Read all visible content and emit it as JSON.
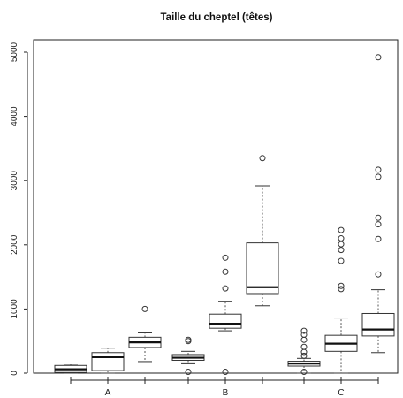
{
  "chart_data": {
    "type": "boxplot",
    "title": "Taille du cheptel (têtes)",
    "xlabel": "",
    "ylabel": "",
    "ylim": [
      0,
      5000
    ],
    "yticks": [
      0,
      1000,
      2000,
      3000,
      4000,
      5000
    ],
    "categories": [
      "A",
      "B",
      "C"
    ],
    "groups_per_category": 3,
    "grid": false,
    "boxes": [
      {
        "category": "A",
        "index": 0,
        "whislo": 0,
        "q1": 10,
        "median": 60,
        "q3": 120,
        "whishi": 140,
        "outliers": []
      },
      {
        "category": "A",
        "index": 1,
        "whislo": 0,
        "q1": 40,
        "median": 250,
        "q3": 320,
        "whishi": 390,
        "outliers": []
      },
      {
        "category": "A",
        "index": 2,
        "whislo": 180,
        "q1": 400,
        "median": 480,
        "q3": 560,
        "whishi": 640,
        "outliers": [
          1000
        ]
      },
      {
        "category": "B",
        "index": 0,
        "whislo": 160,
        "q1": 200,
        "median": 240,
        "q3": 290,
        "whishi": 340,
        "outliers": [
          20,
          500,
          520
        ]
      },
      {
        "category": "B",
        "index": 1,
        "whislo": 660,
        "q1": 700,
        "median": 770,
        "q3": 920,
        "whishi": 1120,
        "outliers": [
          20,
          1320,
          1580,
          1800
        ]
      },
      {
        "category": "B",
        "index": 2,
        "whislo": 1050,
        "q1": 1240,
        "median": 1340,
        "q3": 2030,
        "whishi": 2920,
        "outliers": [
          3350
        ]
      },
      {
        "category": "C",
        "index": 0,
        "whislo": 0,
        "q1": 110,
        "median": 150,
        "q3": 185,
        "whishi": 230,
        "outliers": [
          20,
          270,
          330,
          410,
          520,
          600,
          660
        ]
      },
      {
        "category": "C",
        "index": 1,
        "whislo": 0,
        "q1": 340,
        "median": 460,
        "q3": 590,
        "whishi": 860,
        "outliers": [
          1310,
          1360,
          1750,
          1920,
          2010,
          2100,
          2230
        ]
      },
      {
        "category": "C",
        "index": 2,
        "whislo": 320,
        "q1": 580,
        "median": 680,
        "q3": 930,
        "whishi": 1300,
        "outliers": [
          1540,
          2090,
          2320,
          2420,
          3060,
          3170,
          4920
        ]
      }
    ]
  }
}
